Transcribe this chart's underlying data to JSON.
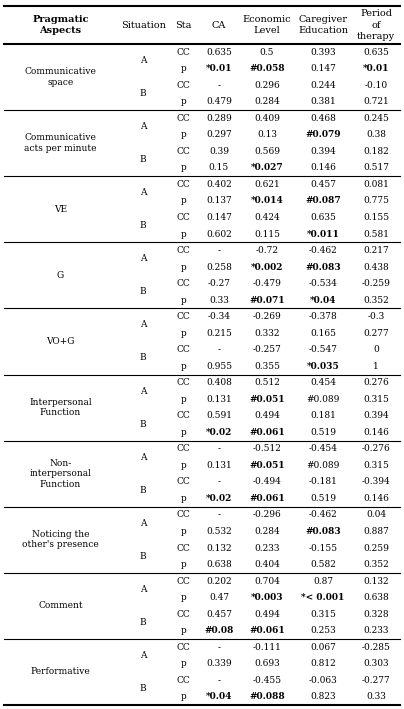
{
  "col_headers": [
    "Pragmatic\nAspects",
    "Situation",
    "Sta",
    "CA",
    "Economic\nLevel",
    "Caregiver\nEducation",
    "Period\nof\ntherapy"
  ],
  "rows": [
    [
      "Communicative\nspace",
      "A",
      "CC",
      "0.635",
      "0.5",
      "0.393",
      "0.635"
    ],
    [
      "",
      "",
      "p",
      "*0.01",
      "#0.058",
      "0.147",
      "*0.01"
    ],
    [
      "",
      "B",
      "CC",
      "-",
      "0.296",
      "0.244",
      "-0.10"
    ],
    [
      "",
      "",
      "p",
      "0.479",
      "0.284",
      "0.381",
      "0.721"
    ],
    [
      "Communicative\nacts per minute",
      "A",
      "CC",
      "0.289",
      "0.409",
      "0.468",
      "0.245"
    ],
    [
      "",
      "",
      "p",
      "0.297",
      "0.13",
      "#0.079",
      "0.38"
    ],
    [
      "",
      "B",
      "CC",
      "0.39",
      "0.569",
      "0.394",
      "0.182"
    ],
    [
      "",
      "",
      "p",
      "0.15",
      "*0.027",
      "0.146",
      "0.517"
    ],
    [
      "VE",
      "A",
      "CC",
      "0.402",
      "0.621",
      "0.457",
      "0.081"
    ],
    [
      "",
      "",
      "p",
      "0.137",
      "*0.014",
      "#0.087",
      "0.775"
    ],
    [
      "",
      "B",
      "CC",
      "0.147",
      "0.424",
      "0.635",
      "0.155"
    ],
    [
      "",
      "",
      "p",
      "0.602",
      "0.115",
      "*0.011",
      "0.581"
    ],
    [
      "G",
      "A",
      "CC",
      "-",
      "-0.72",
      "-0.462",
      "0.217"
    ],
    [
      "",
      "",
      "p",
      "0.258",
      "*0.002",
      "#0.083",
      "0.438"
    ],
    [
      "",
      "B",
      "CC",
      "-0.27",
      "-0.479",
      "-0.534",
      "-0.259"
    ],
    [
      "",
      "",
      "p",
      "0.33",
      "#0.071",
      "*0.04",
      "0.352"
    ],
    [
      "VO+G",
      "A",
      "CC",
      "-0.34",
      "-0.269",
      "-0.378",
      "-0.3"
    ],
    [
      "",
      "",
      "p",
      "0.215",
      "0.332",
      "0.165",
      "0.277"
    ],
    [
      "",
      "B",
      "CC",
      "-",
      "-0.257",
      "-0.547",
      "0"
    ],
    [
      "",
      "",
      "p",
      "0.955",
      "0.355",
      "*0.035",
      "1"
    ],
    [
      "Interpersonal\nFunction",
      "A",
      "CC",
      "0.408",
      "0.512",
      "0.454",
      "0.276"
    ],
    [
      "",
      "",
      "p",
      "0.131",
      "#0.051",
      "#0.089",
      "0.315"
    ],
    [
      "",
      "B",
      "CC",
      "0.591",
      "0.494",
      "0.181",
      "0.394"
    ],
    [
      "",
      "",
      "p",
      "*0.02",
      "#0.061",
      "0.519",
      "0.146"
    ],
    [
      "Non-\ninterpersonal\nFunction",
      "A",
      "CC",
      "-",
      "-0.512",
      "-0.454",
      "-0.276"
    ],
    [
      "",
      "",
      "p",
      "0.131",
      "#0.051",
      "#0.089",
      "0.315"
    ],
    [
      "",
      "B",
      "CC",
      "-",
      "-0.494",
      "-0.181",
      "-0.394"
    ],
    [
      "",
      "",
      "p",
      "*0.02",
      "#0.061",
      "0.519",
      "0.146"
    ],
    [
      "Noticing the\nother's presence",
      "A",
      "CC",
      "-",
      "-0.296",
      "-0.462",
      "0.04"
    ],
    [
      "",
      "",
      "p",
      "0.532",
      "0.284",
      "#0.083",
      "0.887"
    ],
    [
      "",
      "B",
      "CC",
      "0.132",
      "0.233",
      "-0.155",
      "0.259"
    ],
    [
      "",
      "",
      "p",
      "0.638",
      "0.404",
      "0.582",
      "0.352"
    ],
    [
      "Comment",
      "A",
      "CC",
      "0.202",
      "0.704",
      "0.87",
      "0.132"
    ],
    [
      "",
      "",
      "p",
      "0.47",
      "*0.003",
      "*< 0.001",
      "0.638"
    ],
    [
      "",
      "B",
      "CC",
      "0.457",
      "0.494",
      "0.315",
      "0.328"
    ],
    [
      "",
      "",
      "p",
      "#0.08",
      "#0.061",
      "0.253",
      "0.233"
    ],
    [
      "Performative",
      "A",
      "CC",
      "-",
      "-0.111",
      "0.067",
      "-0.285"
    ],
    [
      "",
      "",
      "p",
      "0.339",
      "0.693",
      "0.812",
      "0.303"
    ],
    [
      "",
      "B",
      "CC",
      "-",
      "-0.455",
      "-0.063",
      "-0.277"
    ],
    [
      "",
      "",
      "p",
      "*0.04",
      "#0.088",
      "0.823",
      "0.33"
    ]
  ],
  "bold_values": [
    "*0.01",
    "*0.027",
    "*0.014",
    "*0.011",
    "*0.002",
    "*0.04",
    "*0.035",
    "*0.02",
    "*0.02",
    "*0.003",
    "*< 0.001",
    "*0.04",
    "#0.058",
    "#0.079",
    "#0.087",
    "#0.083",
    "#0.071",
    "#0.051",
    "#0.061",
    "#0.051",
    "#0.061",
    "#0.083",
    "#0.08",
    "#0.061",
    "#0.088"
  ],
  "group_separator_rows": [
    4,
    8,
    12,
    16,
    20,
    24,
    28,
    32,
    36
  ],
  "figsize": [
    4.04,
    7.09
  ],
  "dpi": 100
}
